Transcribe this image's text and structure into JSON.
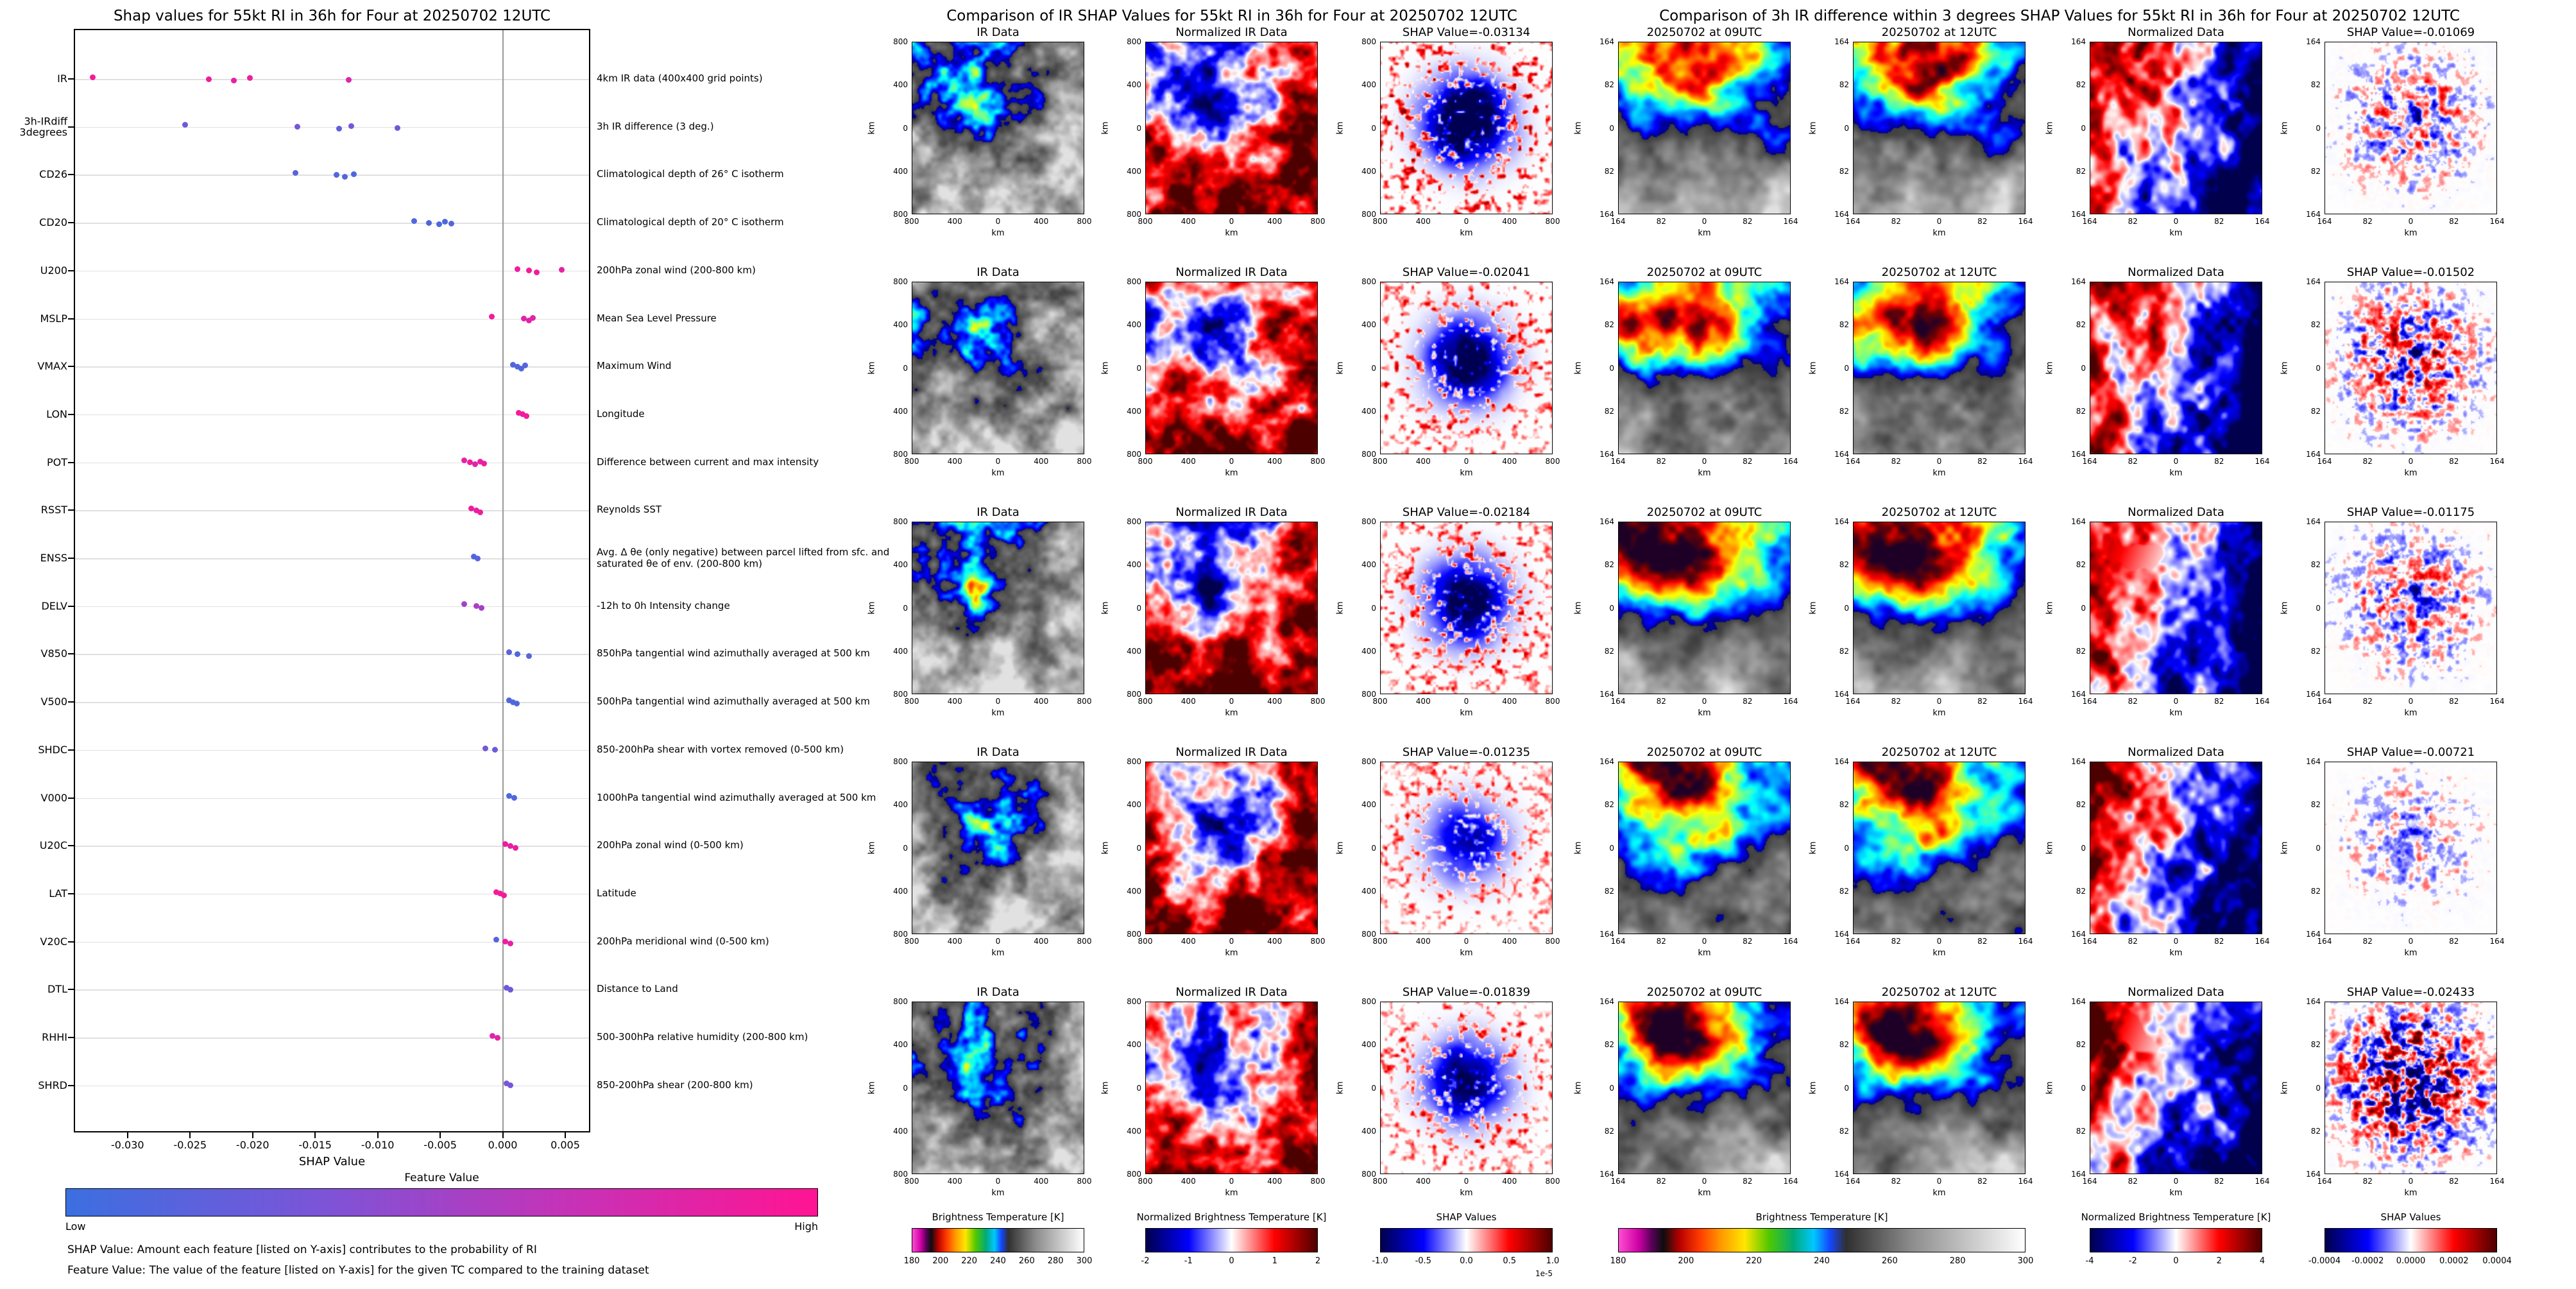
{
  "palettes": {
    "ir": [
      [
        0,
        "#ff4dd2"
      ],
      [
        0.05,
        "#cc00a3"
      ],
      [
        0.08,
        "#5c005c"
      ],
      [
        0.11,
        "#0d0d0d"
      ],
      [
        0.15,
        "#b80000"
      ],
      [
        0.2,
        "#ff3c00"
      ],
      [
        0.25,
        "#ff9600"
      ],
      [
        0.31,
        "#ffe600"
      ],
      [
        0.37,
        "#50c800"
      ],
      [
        0.43,
        "#00aa78"
      ],
      [
        0.48,
        "#00c8ff"
      ],
      [
        0.52,
        "#1446ff"
      ],
      [
        0.56,
        "#303030"
      ],
      [
        0.72,
        "#8c8c8c"
      ],
      [
        1,
        "#ffffff"
      ]
    ],
    "seismic": [
      [
        0,
        "#00004d"
      ],
      [
        0.25,
        "#0000ff"
      ],
      [
        0.5,
        "#ffffff"
      ],
      [
        0.75,
        "#ff0000"
      ],
      [
        1,
        "#4d0000"
      ]
    ],
    "featval": [
      [
        0,
        "#3b6fe0"
      ],
      [
        0.33,
        "#7a55d8"
      ],
      [
        0.66,
        "#c433b8"
      ],
      [
        1,
        "#ff1493"
      ]
    ]
  },
  "chart_data": [
    {
      "type": "scatter",
      "title": "Shap values for 55kt RI in 36h for Four at 20250702 12UTC",
      "xlabel": "SHAP Value",
      "xlim": [
        -0.0343,
        0.007
      ],
      "x_ticks": [
        "-0.030",
        "-0.025",
        "-0.020",
        "-0.015",
        "-0.010",
        "-0.005",
        "0.000",
        "0.005"
      ],
      "grid": true,
      "colorbar": {
        "title": "Feature Value",
        "low_label": "Low",
        "high_label": "High"
      },
      "notes": [
        "SHAP Value: Amount each feature [listed on Y-axis] contributes to the probability of RI",
        "Feature Value: The value of the feature [listed on Y-axis] for the given TC compared to the training dataset"
      ],
      "features": [
        {
          "name": "IR",
          "description": "4km IR data (400x400 grid points)",
          "points": [
            [
              -0.0328,
              0.95
            ],
            [
              -0.0235,
              0.9
            ],
            [
              -0.0215,
              0.85
            ],
            [
              -0.0202,
              0.9
            ],
            [
              -0.0123,
              0.8
            ]
          ]
        },
        {
          "name": "3h-IRdiff\n3degrees",
          "description": "3h IR difference (3 deg.)",
          "points": [
            [
              -0.0254,
              0.25
            ],
            [
              -0.0164,
              0.3
            ],
            [
              -0.0131,
              0.2
            ],
            [
              -0.0121,
              0.3
            ],
            [
              -0.0084,
              0.25
            ]
          ]
        },
        {
          "name": "CD26",
          "description": "Climatological depth of 26° C isotherm",
          "points": [
            [
              -0.0166,
              0.15
            ],
            [
              -0.0133,
              0.1
            ],
            [
              -0.0126,
              0.12
            ],
            [
              -0.0119,
              0.1
            ]
          ]
        },
        {
          "name": "CD20",
          "description": "Climatological depth of 20° C isotherm",
          "points": [
            [
              -0.0071,
              0.12
            ],
            [
              -0.0059,
              0.1
            ],
            [
              -0.0051,
              0.08
            ],
            [
              -0.0046,
              0.1
            ],
            [
              -0.0041,
              0.12
            ]
          ]
        },
        {
          "name": "U200",
          "description": "200hPa zonal wind (200-800 km)",
          "points": [
            [
              0.0012,
              0.9
            ],
            [
              0.0021,
              0.95
            ],
            [
              0.0027,
              0.9
            ],
            [
              0.0047,
              0.85
            ]
          ]
        },
        {
          "name": "MSLP",
          "description": "Mean Sea Level Pressure",
          "points": [
            [
              -0.0009,
              0.9
            ],
            [
              0.0017,
              0.8
            ],
            [
              0.0021,
              0.85
            ],
            [
              0.0024,
              0.8
            ]
          ]
        },
        {
          "name": "VMAX",
          "description": "Maximum Wind",
          "points": [
            [
              0.0008,
              0.1
            ],
            [
              0.0012,
              0.12
            ],
            [
              0.0015,
              0.1
            ],
            [
              0.0018,
              0.15
            ]
          ]
        },
        {
          "name": "LON",
          "description": "Longitude",
          "points": [
            [
              0.0013,
              0.95
            ],
            [
              0.0016,
              0.9
            ],
            [
              0.0019,
              0.95
            ]
          ]
        },
        {
          "name": "POT",
          "description": "Difference between current and max intensity",
          "points": [
            [
              -0.0031,
              0.85
            ],
            [
              -0.0026,
              0.9
            ],
            [
              -0.0022,
              0.8
            ],
            [
              -0.0018,
              0.85
            ],
            [
              -0.0015,
              0.9
            ]
          ]
        },
        {
          "name": "RSST",
          "description": "Reynolds SST",
          "points": [
            [
              -0.0025,
              0.9
            ],
            [
              -0.0021,
              0.85
            ],
            [
              -0.0018,
              0.9
            ]
          ]
        },
        {
          "name": "ENSS",
          "description": "Avg. Δ θe (only negative) between parcel lifted from sfc. and saturated θe of env. (200-800 km)",
          "points": [
            [
              -0.0023,
              0.1
            ],
            [
              -0.002,
              0.15
            ]
          ]
        },
        {
          "name": "DELV",
          "description": "-12h to 0h Intensity change",
          "points": [
            [
              -0.0031,
              0.5
            ],
            [
              -0.0021,
              0.55
            ],
            [
              -0.0017,
              0.5
            ]
          ]
        },
        {
          "name": "V850",
          "description": "850hPa tangential wind azimuthally averaged at 500 km",
          "points": [
            [
              0.0005,
              0.15
            ],
            [
              0.0012,
              0.1
            ],
            [
              0.0021,
              0.12
            ]
          ]
        },
        {
          "name": "V500",
          "description": "500hPa tangential wind azimuthally averaged at 500 km",
          "points": [
            [
              0.0005,
              0.1
            ],
            [
              0.0008,
              0.12
            ],
            [
              0.0011,
              0.1
            ]
          ]
        },
        {
          "name": "SHDC",
          "description": "850-200hPa shear with vortex removed (0-500 km)",
          "points": [
            [
              -0.0014,
              0.3
            ],
            [
              -0.0006,
              0.25
            ]
          ]
        },
        {
          "name": "V000",
          "description": "1000hPa tangential wind azimuthally averaged at 500 km",
          "points": [
            [
              0.0005,
              0.1
            ],
            [
              0.0009,
              0.12
            ]
          ]
        },
        {
          "name": "U20C",
          "description": "200hPa zonal wind (0-500 km)",
          "points": [
            [
              0.0002,
              0.9
            ],
            [
              0.0006,
              0.85
            ],
            [
              0.001,
              0.9
            ]
          ]
        },
        {
          "name": "LAT",
          "description": "Latitude",
          "points": [
            [
              -0.0005,
              0.95
            ],
            [
              -0.0002,
              0.9
            ],
            [
              0.0001,
              0.95
            ]
          ]
        },
        {
          "name": "V20C",
          "description": "200hPa meridional wind (0-500 km)",
          "points": [
            [
              -0.0005,
              0.15
            ],
            [
              0.0002,
              0.9
            ],
            [
              0.0006,
              0.85
            ]
          ]
        },
        {
          "name": "DTL",
          "description": "Distance to Land",
          "points": [
            [
              0.0003,
              0.3
            ],
            [
              0.0006,
              0.25
            ]
          ]
        },
        {
          "name": "RHHI",
          "description": "500-300hPa relative humidity (200-800 km)",
          "points": [
            [
              -0.0008,
              0.8
            ],
            [
              -0.0004,
              0.85
            ]
          ]
        },
        {
          "name": "SHRD",
          "description": "850-200hPa shear (200-800 km)",
          "points": [
            [
              0.0003,
              0.35
            ],
            [
              0.0006,
              0.3
            ]
          ]
        }
      ]
    },
    {
      "type": "heatmap",
      "title": "Comparison of IR SHAP Values for 55kt RI in 36h for Four at 20250702 12UTC",
      "axis_ticks": [
        "800",
        "400",
        "0",
        "400",
        "800"
      ],
      "axis_label": "km",
      "rows": [
        {
          "titles": [
            "IR Data",
            "Normalized IR Data",
            "SHAP Value=-0.03134"
          ],
          "shap_value": -0.03134
        },
        {
          "titles": [
            "IR Data",
            "Normalized IR Data",
            "SHAP Value=-0.02041"
          ],
          "shap_value": -0.02041
        },
        {
          "titles": [
            "IR Data",
            "Normalized IR Data",
            "SHAP Value=-0.02184"
          ],
          "shap_value": -0.02184
        },
        {
          "titles": [
            "IR Data",
            "Normalized IR Data",
            "SHAP Value=-0.01235"
          ],
          "shap_value": -0.01235
        },
        {
          "titles": [
            "IR Data",
            "Normalized IR Data",
            "SHAP Value=-0.01839"
          ],
          "shap_value": -0.01839
        }
      ],
      "colorbars": [
        {
          "label": "Brightness Temperature [K]",
          "ticks": [
            "180",
            "200",
            "220",
            "240",
            "260",
            "280",
            "300"
          ],
          "palette": "ir"
        },
        {
          "label": "Normalized Brightness Temperature [K]",
          "ticks": [
            "-2",
            "-1",
            "0",
            "1",
            "2"
          ],
          "palette": "seismic"
        },
        {
          "label": "SHAP Values",
          "ticks": [
            "-1.0",
            "-0.5",
            "0.0",
            "0.5",
            "1.0"
          ],
          "palette": "seismic",
          "offset": "1e-5"
        }
      ]
    },
    {
      "type": "heatmap",
      "title": "Comparison of 3h IR difference within 3 degrees SHAP Values for 55kt RI in 36h for Four at 20250702 12UTC",
      "axis_ticks": [
        "164",
        "82",
        "0",
        "82",
        "164"
      ],
      "axis_label": "km",
      "rows": [
        {
          "titles": [
            "20250702 at 09UTC",
            "20250702 at 12UTC",
            "Normalized Data",
            "SHAP Value=-0.01069"
          ],
          "shap_value": -0.01069
        },
        {
          "titles": [
            "20250702 at 09UTC",
            "20250702 at 12UTC",
            "Normalized Data",
            "SHAP Value=-0.01502"
          ],
          "shap_value": -0.01502
        },
        {
          "titles": [
            "20250702 at 09UTC",
            "20250702 at 12UTC",
            "Normalized Data",
            "SHAP Value=-0.01175"
          ],
          "shap_value": -0.01175
        },
        {
          "titles": [
            "20250702 at 09UTC",
            "20250702 at 12UTC",
            "Normalized Data",
            "SHAP Value=-0.00721"
          ],
          "shap_value": -0.00721
        },
        {
          "titles": [
            "20250702 at 09UTC",
            "20250702 at 12UTC",
            "Normalized Data",
            "SHAP Value=-0.02433"
          ],
          "shap_value": -0.02433
        }
      ],
      "colorbars": [
        {
          "label": "Brightness Temperature [K]",
          "ticks": [
            "180",
            "200",
            "220",
            "240",
            "260",
            "280",
            "300"
          ],
          "palette": "ir"
        },
        {
          "label": "Normalized Brightness Temperature [K]",
          "ticks": [
            "-4",
            "-2",
            "0",
            "2",
            "4"
          ],
          "palette": "seismic"
        },
        {
          "label": "SHAP Values",
          "ticks": [
            "-0.0004",
            "-0.0002",
            "0.0000",
            "0.0002",
            "0.0004"
          ],
          "palette": "seismic"
        }
      ]
    }
  ]
}
